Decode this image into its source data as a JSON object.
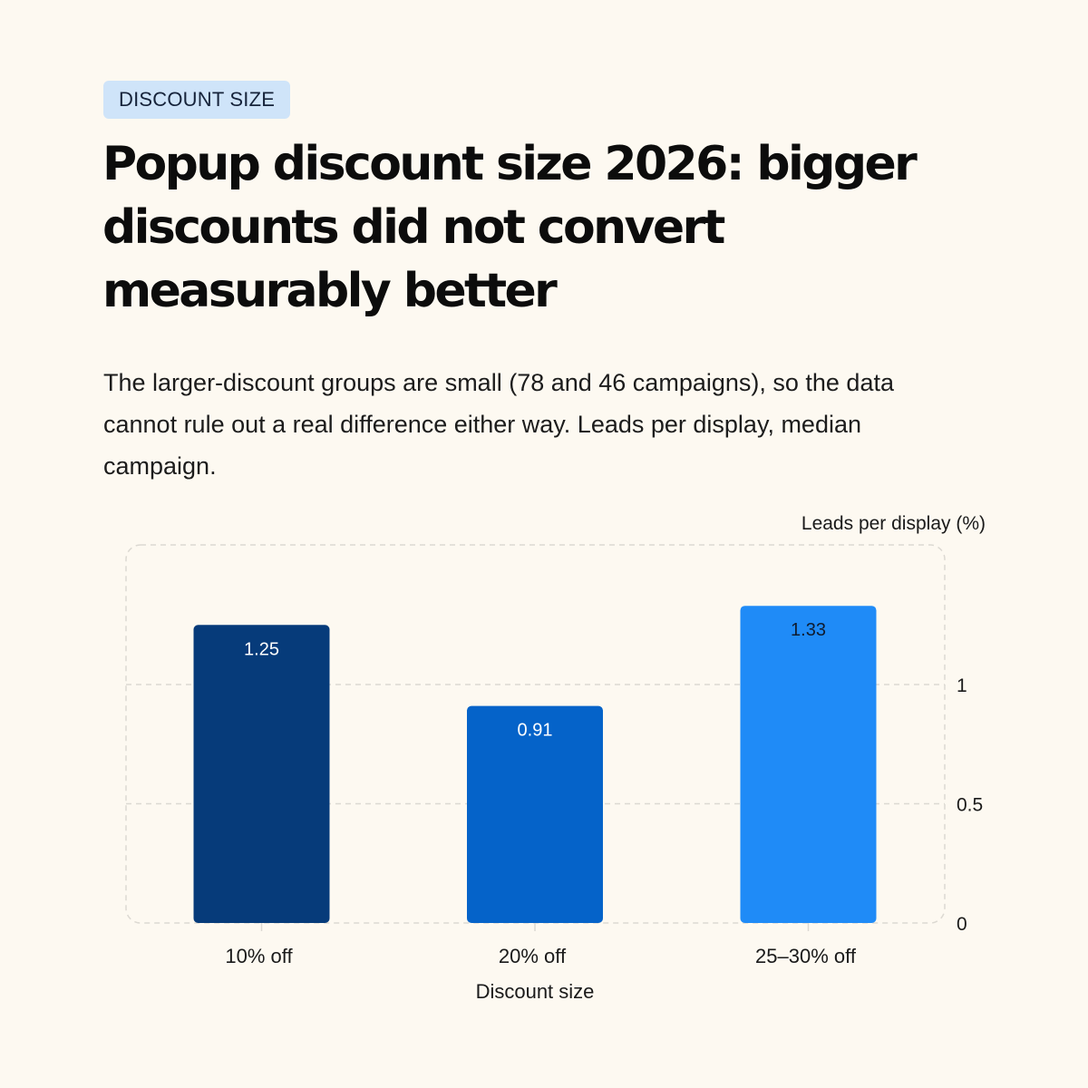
{
  "tag": "DISCOUNT SIZE",
  "title": "Popup discount size 2026: bigger discounts did not convert measurably better",
  "subtitle": "The larger-discount groups are small (78 and 46 campaigns), so the data cannot rule out a real difference either way. Leads per display, median campaign.",
  "colors": {
    "background": "#fdf9f1",
    "tag_background": "#cfe4f9",
    "bar_10": "#063b7a",
    "bar_20": "#0563c9",
    "bar_25_30": "#1f8bf7",
    "grid": "#dcd9d2"
  },
  "chart_data": {
    "type": "bar",
    "categories": [
      "10% off",
      "20% off",
      "25–30% off"
    ],
    "values": [
      1.25,
      0.91,
      1.33
    ],
    "value_labels": [
      "1.25",
      "0.91",
      "1.33"
    ],
    "colors": [
      "#063b7a",
      "#0563c9",
      "#1f8bf7"
    ],
    "xlabel": "Discount size",
    "ylabel": "Leads per display (%)",
    "ylim": [
      0,
      1.45
    ],
    "yticks": [
      0,
      0.5,
      1
    ],
    "ytick_labels": [
      "0",
      "0.5",
      "1"
    ],
    "y_axis_side": "right",
    "grid": true
  }
}
